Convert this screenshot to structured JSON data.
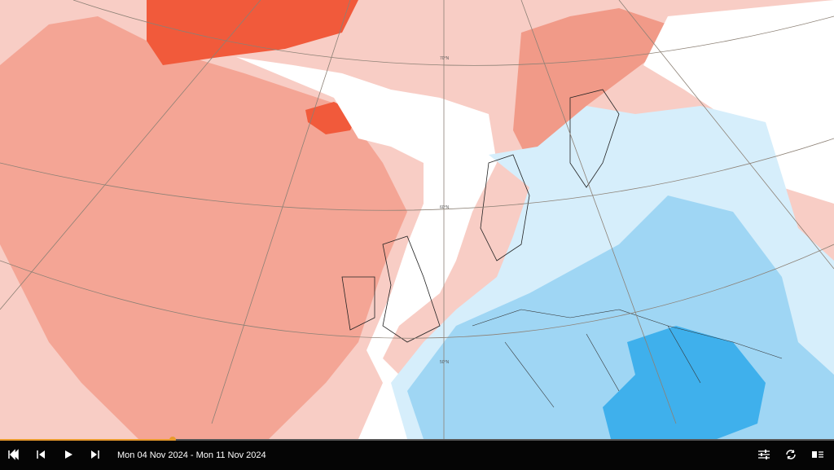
{
  "map": {
    "labels": [
      "70°N",
      "60°N",
      "50°N"
    ]
  },
  "player": {
    "date_range": "Mon 04 Nov 2024 - Mon 11 Nov 2024"
  }
}
